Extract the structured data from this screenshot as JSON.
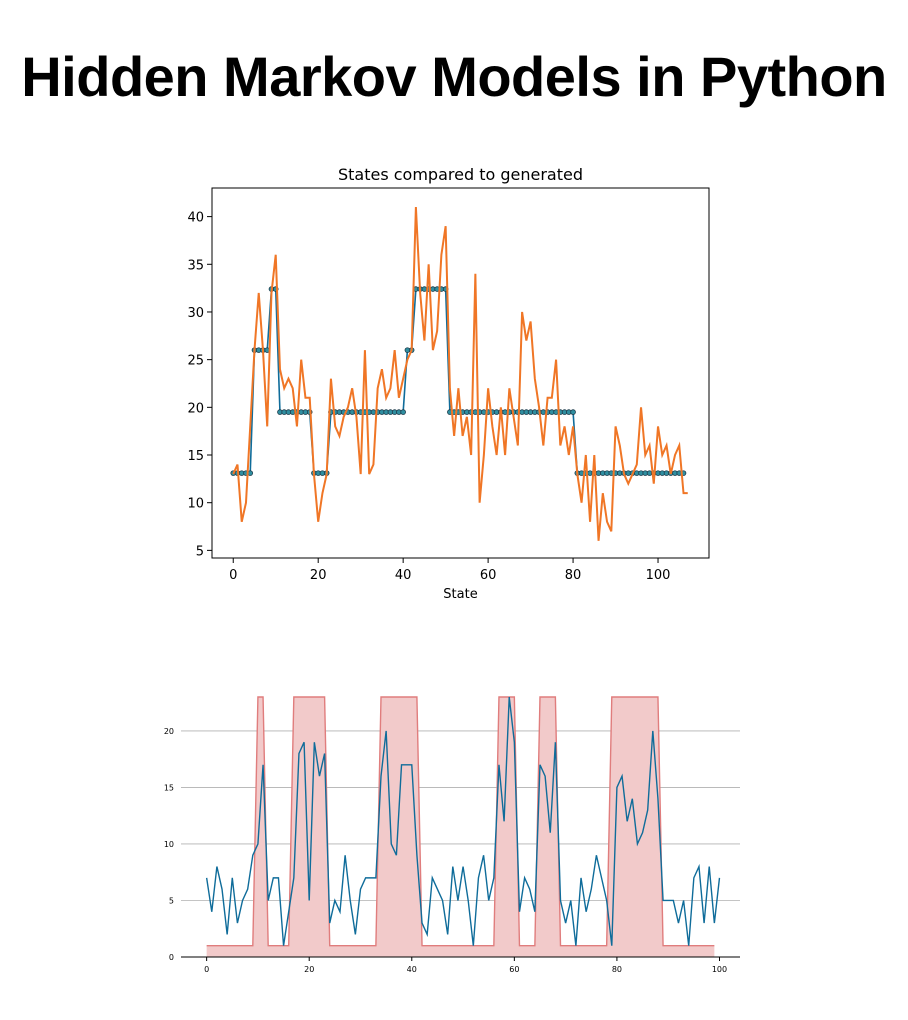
{
  "page": {
    "title": "Hidden Markov Models in Python"
  },
  "colors": {
    "blue": "#0f6c9a",
    "orange": "#f07626",
    "fill": "#f2caca",
    "fill_edge": "#e07d7d",
    "grid": "#b0b0b0",
    "marker_face": "#2f8ea0"
  },
  "chart_data": [
    {
      "type": "line",
      "title": "States compared to generated",
      "xlabel": "State",
      "ylabel": "",
      "xlim": [
        -5,
        112
      ],
      "ylim": [
        4.2,
        43.0
      ],
      "xticks": [
        0,
        20,
        40,
        60,
        80,
        100
      ],
      "yticks": [
        5,
        10,
        15,
        20,
        25,
        30,
        35,
        40
      ],
      "grid": false,
      "series": [
        {
          "role": "hidden-state-levels",
          "markers": true,
          "x_start": 0,
          "values": [
            13.1,
            13.1,
            13.1,
            13.1,
            13.1,
            26,
            26,
            26,
            26,
            32.4,
            32.4,
            19.5,
            19.5,
            19.5,
            19.5,
            19.5,
            19.5,
            19.5,
            19.5,
            13.1,
            13.1,
            13.1,
            13.1,
            19.5,
            19.5,
            19.5,
            19.5,
            19.5,
            19.5,
            19.5,
            19.5,
            19.5,
            19.5,
            19.5,
            19.5,
            19.5,
            19.5,
            19.5,
            19.5,
            19.5,
            19.5,
            26,
            26,
            32.4,
            32.4,
            32.4,
            32.4,
            32.4,
            32.4,
            32.4,
            32.4,
            19.5,
            19.5,
            19.5,
            19.5,
            19.5,
            19.5,
            19.5,
            19.5,
            19.5,
            19.5,
            19.5,
            19.5,
            19.5,
            19.5,
            19.5,
            19.5,
            19.5,
            19.5,
            19.5,
            19.5,
            19.5,
            19.5,
            19.5,
            19.5,
            19.5,
            19.5,
            19.5,
            19.5,
            19.5,
            19.5,
            13.1,
            13.1,
            13.1,
            13.1,
            13.1,
            13.1,
            13.1,
            13.1,
            13.1,
            13.1,
            13.1,
            13.1,
            13.1,
            13.1,
            13.1,
            13.1,
            13.1,
            13.1,
            13.1,
            13.1,
            13.1,
            13.1,
            13.1,
            13.1,
            13.1,
            13.1
          ]
        },
        {
          "role": "generated-observations",
          "markers": false,
          "x_start": 0,
          "values": [
            13,
            14,
            8,
            10,
            18,
            26,
            32,
            26,
            18,
            32,
            36,
            24,
            22,
            23,
            22,
            18,
            25,
            21,
            21,
            13,
            8,
            11,
            13,
            23,
            18,
            17,
            19,
            20,
            22,
            19,
            13,
            26,
            13,
            14,
            22,
            24,
            21,
            22,
            26,
            21,
            23,
            25,
            26,
            41,
            32,
            27,
            35,
            26,
            28,
            36,
            39,
            22,
            17,
            22,
            17,
            19,
            15,
            34,
            10,
            15,
            22,
            18,
            15,
            20,
            15,
            22,
            19,
            16,
            30,
            27,
            29,
            23,
            20,
            16,
            21,
            21,
            25,
            16,
            18,
            15,
            18,
            13,
            10,
            15,
            8,
            15,
            6,
            11,
            8,
            7,
            18,
            16,
            13,
            12,
            13,
            14,
            20,
            15,
            16,
            12,
            18,
            15,
            16,
            13,
            15,
            16,
            11,
            11
          ]
        }
      ]
    },
    {
      "type": "line",
      "title": "",
      "xlabel": "",
      "ylabel": "",
      "xlim": [
        -5,
        104
      ],
      "ylim": [
        0,
        23
      ],
      "xticks": [
        0,
        20,
        40,
        60,
        80,
        100
      ],
      "yticks": [
        0,
        5,
        10,
        15,
        20
      ],
      "grid": true,
      "series": [
        {
          "role": "hidden-state-area",
          "fill": true,
          "x_start": 0,
          "values": [
            1,
            1,
            1,
            1,
            1,
            1,
            1,
            1,
            1,
            1,
            23,
            23,
            1,
            1,
            1,
            1,
            1,
            23,
            23,
            23,
            23,
            23,
            23,
            23,
            1,
            1,
            1,
            1,
            1,
            1,
            1,
            1,
            1,
            1,
            23,
            23,
            23,
            23,
            23,
            23,
            23,
            23,
            1,
            1,
            1,
            1,
            1,
            1,
            1,
            1,
            1,
            1,
            1,
            1,
            1,
            1,
            1,
            23,
            23,
            23,
            23,
            1,
            1,
            1,
            1,
            23,
            23,
            23,
            23,
            1,
            1,
            1,
            1,
            1,
            1,
            1,
            1,
            1,
            1,
            23,
            23,
            23,
            23,
            23,
            23,
            23,
            23,
            23,
            23,
            1,
            1,
            1,
            1,
            1,
            1,
            1,
            1,
            1,
            1,
            1
          ]
        },
        {
          "role": "observations",
          "fill": false,
          "x_start": 0,
          "values": [
            7,
            4,
            8,
            6,
            2,
            7,
            3,
            5,
            6,
            9,
            10,
            17,
            5,
            7,
            7,
            1,
            4,
            7,
            18,
            19,
            5,
            19,
            16,
            18,
            3,
            5,
            4,
            9,
            5,
            2,
            6,
            7,
            7,
            7,
            16,
            20,
            10,
            9,
            17,
            17,
            17,
            9,
            3,
            2,
            7,
            6,
            5,
            2,
            8,
            5,
            8,
            5,
            1,
            7,
            9,
            5,
            7,
            17,
            12,
            23,
            19,
            4,
            7,
            6,
            4,
            17,
            16,
            11,
            19,
            5,
            3,
            5,
            1,
            7,
            4,
            6,
            9,
            7,
            5,
            1,
            15,
            16,
            12,
            14,
            10,
            11,
            13,
            20,
            14,
            5,
            5,
            5,
            3,
            5,
            1,
            7,
            8,
            3,
            8,
            3,
            7
          ]
        }
      ]
    }
  ]
}
